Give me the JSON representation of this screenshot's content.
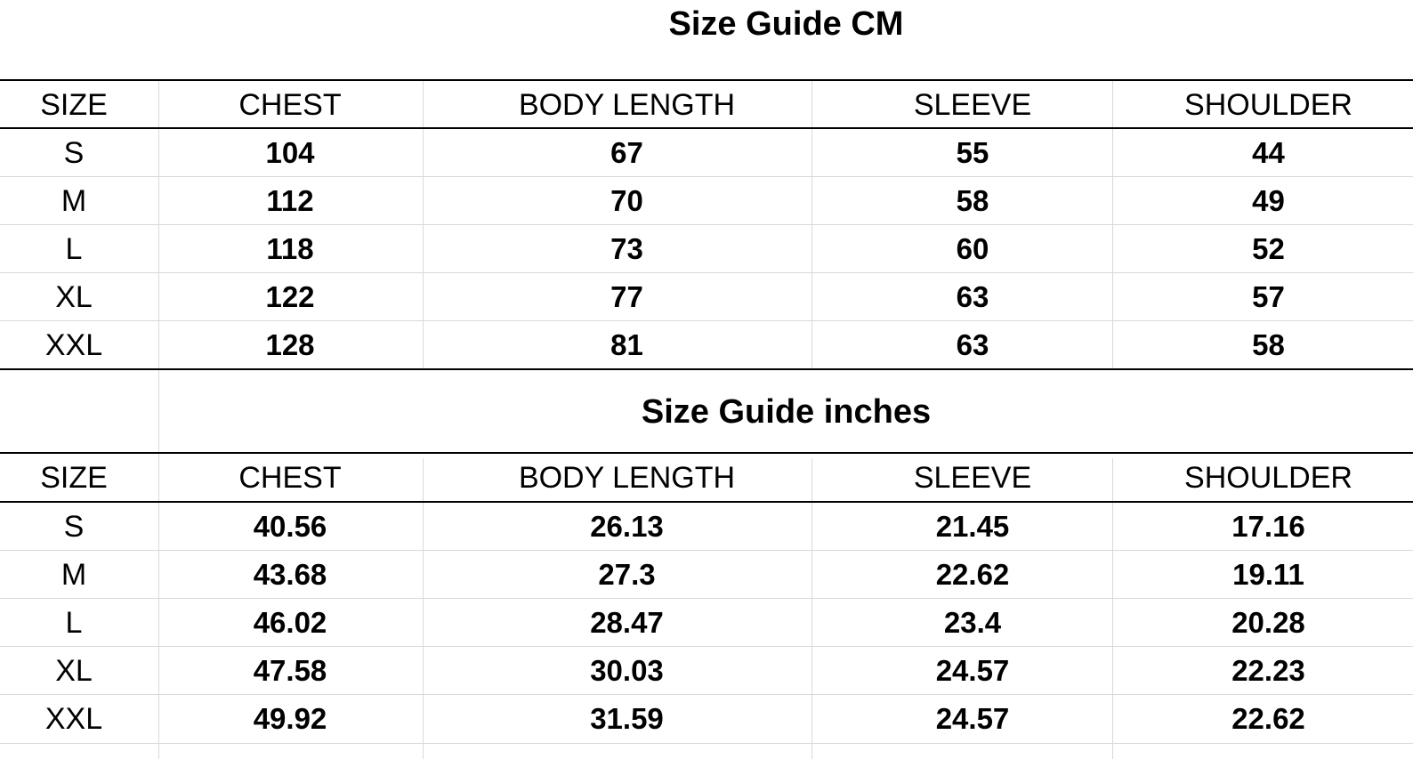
{
  "tables": [
    {
      "title": "Size Guide CM",
      "columns": [
        "SIZE",
        "CHEST",
        "BODY LENGTH",
        "SLEEVE",
        "SHOULDER"
      ],
      "rows": [
        [
          "S",
          "104",
          "67",
          "55",
          "44"
        ],
        [
          "M",
          "112",
          "70",
          "58",
          "49"
        ],
        [
          "L",
          "118",
          "73",
          "60",
          "52"
        ],
        [
          "XL",
          "122",
          "77",
          "63",
          "57"
        ],
        [
          "XXL",
          "128",
          "81",
          "63",
          "58"
        ]
      ]
    },
    {
      "title": "Size Guide inches",
      "columns": [
        "SIZE",
        "CHEST",
        "BODY LENGTH",
        "SLEEVE",
        "SHOULDER"
      ],
      "rows": [
        [
          "S",
          "40.56",
          "26.13",
          "21.45",
          "17.16"
        ],
        [
          "M",
          "43.68",
          "27.3",
          "22.62",
          "19.11"
        ],
        [
          "L",
          "46.02",
          "28.47",
          "23.4",
          "20.28"
        ],
        [
          "XL",
          "47.58",
          "30.03",
          "24.57",
          "22.23"
        ],
        [
          "XXL",
          "49.92",
          "31.59",
          "24.57",
          "22.62"
        ]
      ]
    }
  ]
}
